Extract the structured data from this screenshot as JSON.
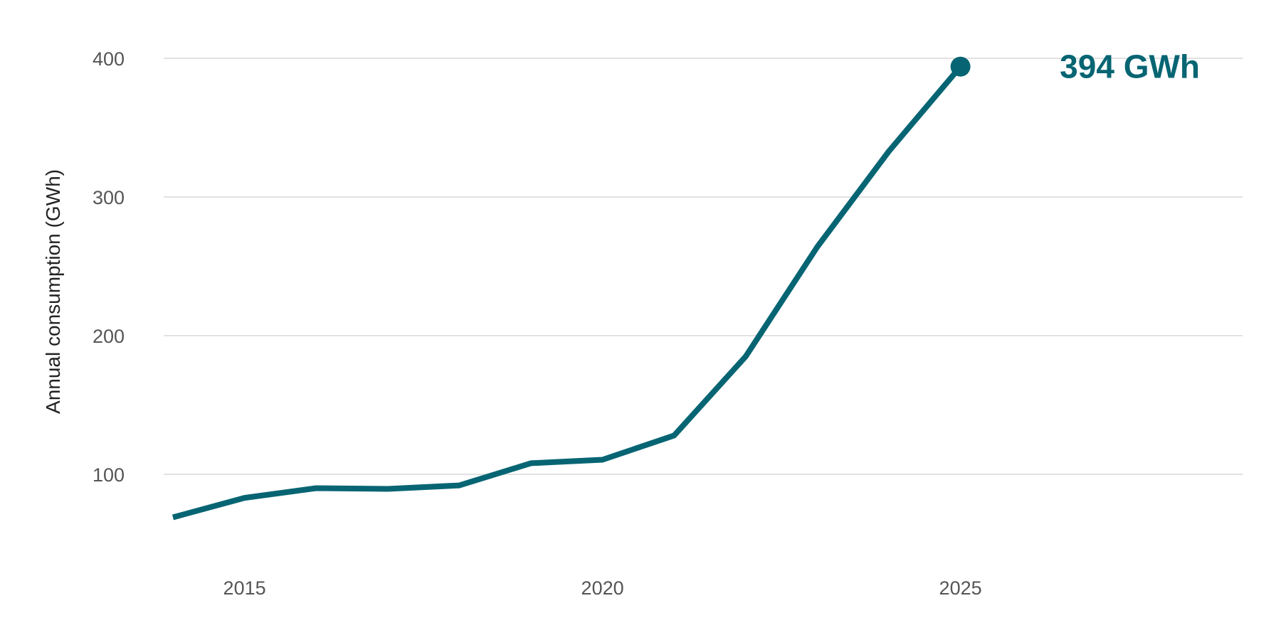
{
  "chart_data": {
    "type": "line",
    "ylabel": "Annual consumption (GWh)",
    "xlabel": "",
    "title": "",
    "x": [
      2014,
      2015,
      2016,
      2017,
      2018,
      2019,
      2020,
      2021,
      2022,
      2023,
      2024,
      2025
    ],
    "series": [
      {
        "values": [
          69,
          83,
          90,
          89.5,
          92,
          108,
          110.5,
          128,
          185,
          264,
          333,
          394
        ]
      }
    ],
    "xlim": [
      2014,
      2029
    ],
    "ylim": [
      40,
      415
    ],
    "x_ticks": [
      2015,
      2020,
      2025
    ],
    "x_tick_labels": [
      "2015",
      "2020",
      "2025"
    ],
    "y_ticks": [
      100,
      200,
      300,
      400
    ],
    "y_tick_labels": [
      "100",
      "200",
      "300",
      "400"
    ],
    "grid": "horizontal",
    "end_label": "394 GWh",
    "colors": {
      "line": "#076573",
      "grid": "#e2e2e2",
      "tick_text": "#555555",
      "axis_title": "#222222"
    }
  }
}
